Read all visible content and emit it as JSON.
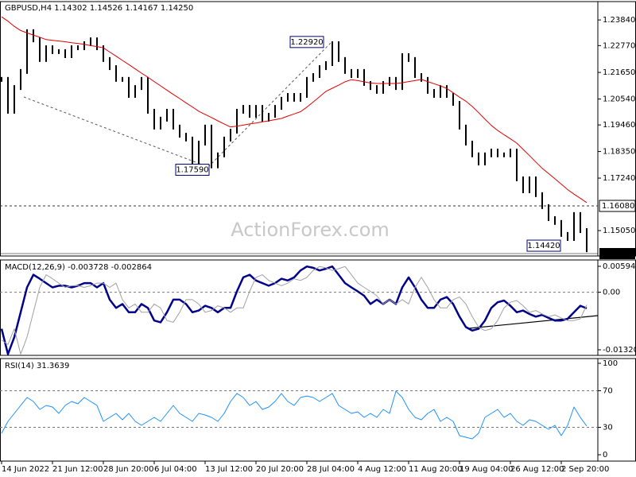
{
  "header": {
    "symbol": "GBPUSD,H4",
    "ohlc": [
      "1.14302",
      "1.14526",
      "1.14167",
      "1.14250"
    ]
  },
  "watermark": "ActionForex.com",
  "chart_data": [
    {
      "type": "line",
      "ylim": [
        1.1399,
        1.2454
      ],
      "yticks": [
        {
          "value": 1.2384,
          "label": "1.23840"
        },
        {
          "value": 1.2277,
          "label": "1.22770"
        },
        {
          "value": 1.2165,
          "label": "1.21650"
        },
        {
          "value": 1.2054,
          "label": "1.20540"
        },
        {
          "value": 1.1946,
          "label": "1.19460"
        },
        {
          "value": 1.1835,
          "label": "1.18350"
        },
        {
          "value": 1.1724,
          "label": "1.17240"
        },
        {
          "value": 1.1505,
          "label": "1.15050"
        }
      ],
      "grid": false,
      "hlines": [
        {
          "value": 1.1608,
          "label": "1.16080"
        }
      ],
      "annotations": [
        {
          "value": 1.1759,
          "label": "1.17590"
        },
        {
          "value": 1.2292,
          "label": "1.22920"
        },
        {
          "value": 1.1442,
          "label": "1.14420"
        }
      ],
      "last_price": {
        "value": 1.1409,
        "label": "1.14090"
      },
      "series": [
        {
          "color": "#000000",
          "style": "bars",
          "values": [
            1.2136,
            1.2003,
            1.2102,
            1.2169,
            1.2335,
            1.2301,
            1.2219,
            1.2268,
            1.2252,
            1.2252,
            1.2235,
            1.2268,
            1.2268,
            1.2285,
            1.2301,
            1.2268,
            1.2219,
            1.2185,
            1.2136,
            1.2136,
            1.2069,
            1.2102,
            1.2136,
            1.2003,
            1.1937,
            1.197,
            1.2003,
            1.1937,
            1.1903,
            1.1887,
            1.177,
            1.187,
            1.1937,
            1.1775,
            1.1821,
            1.1887,
            1.192,
            1.2003,
            1.2019,
            1.1986,
            1.2019,
            1.197,
            1.1986,
            1.2019,
            1.2053,
            1.2069,
            1.2053,
            1.2069,
            1.2136,
            1.2152,
            1.2185,
            1.2202,
            1.2285,
            1.2219,
            1.2169,
            1.2152,
            1.2169,
            1.2119,
            1.2102,
            1.2086,
            1.2119,
            1.2136,
            1.2102,
            1.2235,
            1.2219,
            1.2152,
            1.2136,
            1.2086,
            1.2069,
            1.2102,
            1.2069,
            1.2036,
            1.1937,
            1.187,
            1.1821,
            1.1787,
            1.1821,
            1.1837,
            1.1821,
            1.1821,
            1.1837,
            1.1721,
            1.1671,
            1.1721,
            1.1655,
            1.1605,
            1.1555,
            1.1539,
            1.1489,
            1.1472,
            1.1572,
            1.1505,
            1.1425
          ]
        },
        {
          "color": "#e00000",
          "style": "line",
          "values": [
            1.2397,
            1.2379,
            1.2357,
            1.234,
            1.233,
            1.2321,
            1.2312,
            1.2302,
            1.2299,
            1.2296,
            1.2293,
            1.2289,
            1.2286,
            1.2282,
            1.2277,
            1.2273,
            1.2268,
            1.225,
            1.2233,
            1.2215,
            1.2198,
            1.218,
            1.2162,
            1.2145,
            1.2127,
            1.2109,
            1.2091,
            1.2073,
            1.2056,
            1.2038,
            1.2021,
            1.2003,
            1.199,
            1.1977,
            1.1963,
            1.195,
            1.1937,
            1.1941,
            1.1945,
            1.195,
            1.1954,
            1.1959,
            1.1963,
            1.1968,
            1.1973,
            1.1983,
            1.1992,
            1.2001,
            1.202,
            1.2042,
            1.2064,
            1.2086,
            1.2099,
            1.2112,
            1.2126,
            1.2135,
            1.2131,
            1.2126,
            1.2121,
            1.2119,
            1.2119,
            1.2119,
            1.2119,
            1.2122,
            1.2127,
            1.2131,
            1.2136,
            1.2127,
            1.2118,
            1.2109,
            1.2098,
            1.208,
            1.2062,
            1.2045,
            1.2023,
            1.1997,
            1.197,
            1.1944,
            1.1923,
            1.1905,
            1.1888,
            1.187,
            1.1844,
            1.1818,
            1.1791,
            1.1765,
            1.1743,
            1.1721,
            1.1699,
            1.1676,
            1.1657,
            1.164,
            1.1622
          ]
        }
      ]
    },
    {
      "type": "line",
      "title": "MACD(12,26,9)",
      "last_values": [
        -0.003728,
        -0.002864
      ],
      "ylim": [
        -0.013207,
        0.005941
      ],
      "yticks": [
        0.005941,
        {
          "value": 0,
          "label": "0.00"
        },
        -0.013207
      ],
      "grid": "dashed",
      "series": [
        {
          "color": "#00008b",
          "style": "thick",
          "values": [
            -0.0084,
            -0.0142,
            -0.0103,
            -0.0046,
            0.0011,
            0.004,
            0.0031,
            0.0021,
            0.0011,
            0.0015,
            0.0015,
            0.0011,
            0.0015,
            0.0021,
            0.0021,
            0.0011,
            0.0021,
            -0.0017,
            -0.0036,
            -0.0027,
            -0.0046,
            -0.0046,
            -0.0027,
            -0.0036,
            -0.0065,
            -0.0069,
            -0.0046,
            -0.0017,
            -0.0017,
            -0.0027,
            -0.0046,
            -0.0042,
            -0.0031,
            -0.0036,
            -0.0046,
            -0.0036,
            -0.0036,
            0.0002,
            0.0034,
            0.004,
            0.0027,
            0.0021,
            0.0015,
            0.0021,
            0.0031,
            0.0027,
            0.0034,
            0.005,
            0.0059,
            0.0056,
            0.005,
            0.0054,
            0.0059,
            0.004,
            0.0021,
            0.0011,
            0.0002,
            -0.0008,
            -0.0027,
            -0.0017,
            -0.0027,
            -0.0017,
            -0.0027,
            0.0011,
            0.0034,
            0.0011,
            -0.0017,
            -0.0036,
            -0.0036,
            -0.0017,
            -0.0011,
            -0.0027,
            -0.0056,
            -0.008,
            -0.0088,
            -0.0084,
            -0.0065,
            -0.0036,
            -0.0023,
            -0.0019,
            -0.0031,
            -0.0046,
            -0.0042,
            -0.005,
            -0.0056,
            -0.0052,
            -0.0059,
            -0.0065,
            -0.0065,
            -0.0061,
            -0.0046,
            -0.0031,
            -0.0037
          ]
        },
        {
          "color": "#a0a0a0",
          "style": "line",
          "values": [
            -0.011,
            -0.012,
            -0.0084,
            -0.0142,
            -0.0103,
            -0.0046,
            0.0011,
            0.004,
            0.0031,
            0.0021,
            0.0011,
            0.0015,
            0.0015,
            0.0011,
            0.0015,
            0.0021,
            0.0021,
            0.0011,
            0.0021,
            -0.0017,
            -0.0036,
            -0.0027,
            -0.0046,
            -0.0046,
            -0.0027,
            -0.0036,
            -0.0065,
            -0.0069,
            -0.0046,
            -0.0017,
            -0.0017,
            -0.0027,
            -0.0046,
            -0.0042,
            -0.0031,
            -0.0036,
            -0.0046,
            -0.0036,
            -0.0036,
            0.0002,
            0.0034,
            0.004,
            0.0027,
            0.0021,
            0.0015,
            0.0021,
            0.0031,
            0.0027,
            0.0034,
            0.005,
            0.0059,
            0.0056,
            0.005,
            0.0054,
            0.0059,
            0.004,
            0.0021,
            0.0011,
            0.0002,
            -0.0008,
            -0.0027,
            -0.0017,
            -0.0027,
            -0.0017,
            -0.0027,
            0.0011,
            0.0034,
            0.0011,
            -0.0017,
            -0.0036,
            -0.0036,
            -0.0017,
            -0.0011,
            -0.0027,
            -0.0056,
            -0.008,
            -0.0088,
            -0.0084,
            -0.0065,
            -0.0036,
            -0.0023,
            -0.0019,
            -0.0031,
            -0.0046,
            -0.0042,
            -0.005,
            -0.0056,
            -0.0052,
            -0.0059,
            -0.0065,
            -0.0065,
            -0.0061,
            -0.0029
          ]
        }
      ]
    },
    {
      "type": "line",
      "title": "RSI(14)",
      "last_values": [
        31.3639
      ],
      "ylim": [
        0,
        100
      ],
      "yticks": [
        100,
        70,
        30,
        0
      ],
      "grid": "dashed",
      "categories": [
        "14 Jun 2022",
        null,
        null,
        null,
        null,
        null,
        null,
        null,
        "21 Jun 12:00",
        null,
        null,
        null,
        null,
        null,
        null,
        null,
        "28 Jun 20:00",
        null,
        null,
        null,
        null,
        null,
        null,
        null,
        "6 Jul 04:00",
        null,
        null,
        null,
        null,
        null,
        null,
        null,
        "13 Jul 12:00",
        null,
        null,
        null,
        null,
        null,
        null,
        null,
        "20 Jul 20:00",
        null,
        null,
        null,
        null,
        null,
        null,
        null,
        "28 Jul 04:00",
        null,
        null,
        null,
        null,
        null,
        null,
        null,
        "4 Aug 12:00",
        null,
        null,
        null,
        null,
        null,
        null,
        null,
        "11 Aug 20:00",
        null,
        null,
        null,
        null,
        null,
        null,
        null,
        "19 Aug 04:00",
        null,
        null,
        null,
        null,
        null,
        null,
        null,
        "26 Aug 12:00",
        null,
        null,
        null,
        null,
        null,
        null,
        null,
        "2 Sep 20:00",
        null,
        null,
        null,
        null
      ],
      "series": [
        {
          "color": "#1e90ff",
          "style": "line",
          "values": [
            23.5,
            36.5,
            45.2,
            53.9,
            62.6,
            58.3,
            49.6,
            53.9,
            52.2,
            45.2,
            53.9,
            58.3,
            55.7,
            62.6,
            58.3,
            53.9,
            36.5,
            40.9,
            45.2,
            38.3,
            45.2,
            36.5,
            32.2,
            36.5,
            40.9,
            36.5,
            45.2,
            53.9,
            45.2,
            40.9,
            36.5,
            45.2,
            43.5,
            40.9,
            36.5,
            45.2,
            58.3,
            67,
            62.6,
            53.9,
            58.3,
            49.6,
            52.2,
            58.3,
            67,
            58.3,
            53.9,
            62.6,
            64.3,
            62.6,
            58.3,
            62.6,
            67,
            53.9,
            49.6,
            45.2,
            47,
            40.9,
            45.2,
            40.9,
            49.6,
            45.2,
            69.6,
            62.6,
            49.6,
            40.9,
            38.3,
            45.2,
            49.6,
            36.5,
            40.9,
            36.5,
            20.9,
            19.1,
            17.4,
            23.5,
            40.9,
            45.2,
            49.6,
            40.9,
            45.2,
            36.5,
            32.2,
            38.3,
            36.5,
            32.2,
            27.8,
            32.2,
            20.9,
            32.2,
            52.2,
            40.9,
            31.4
          ]
        }
      ]
    }
  ]
}
